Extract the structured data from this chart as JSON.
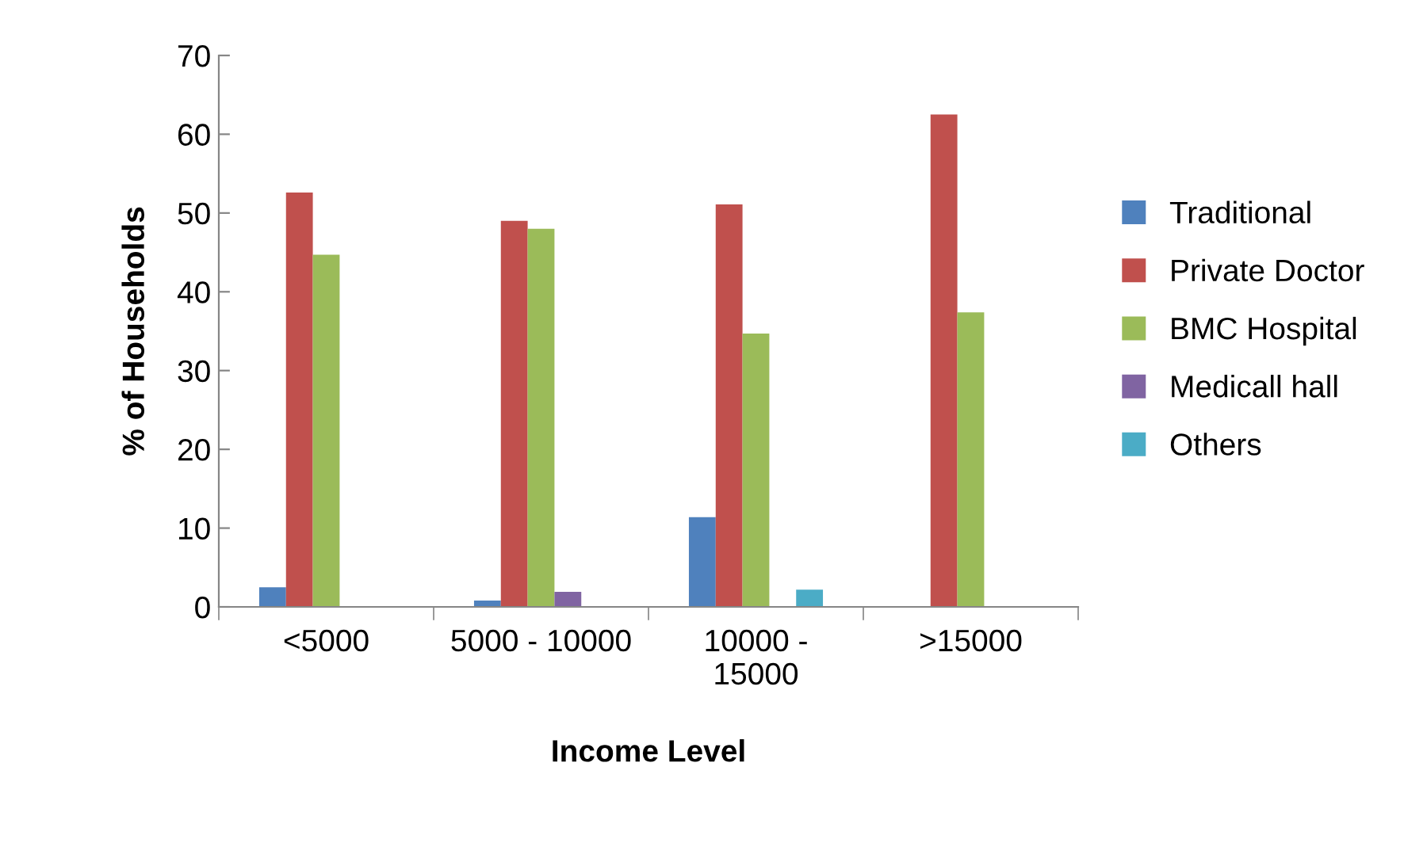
{
  "chart_data": {
    "type": "bar",
    "xlabel": "Income Level",
    "ylabel": "% of Households",
    "categories": [
      "<5000",
      "5000 - 10000",
      "10000 -\n15000",
      ">15000"
    ],
    "series": [
      {
        "name": "Traditional",
        "color": "#4f81bd",
        "values": [
          2.5,
          0.8,
          11.4,
          0
        ]
      },
      {
        "name": "Private Doctor",
        "color": "#c0504d",
        "values": [
          52.6,
          49.0,
          51.1,
          62.5
        ]
      },
      {
        "name": "BMC Hospital",
        "color": "#9bbb59",
        "values": [
          44.7,
          48.0,
          34.7,
          37.4
        ]
      },
      {
        "name": "Medicall hall",
        "color": "#8064a2",
        "values": [
          0,
          1.9,
          0,
          0
        ]
      },
      {
        "name": "Others",
        "color": "#4bacc6",
        "values": [
          0,
          0,
          2.2,
          0
        ]
      }
    ],
    "ylim": [
      0,
      70
    ],
    "yticks": [
      0,
      10,
      20,
      30,
      40,
      50,
      60,
      70
    ],
    "grid": false,
    "legend": "right"
  }
}
